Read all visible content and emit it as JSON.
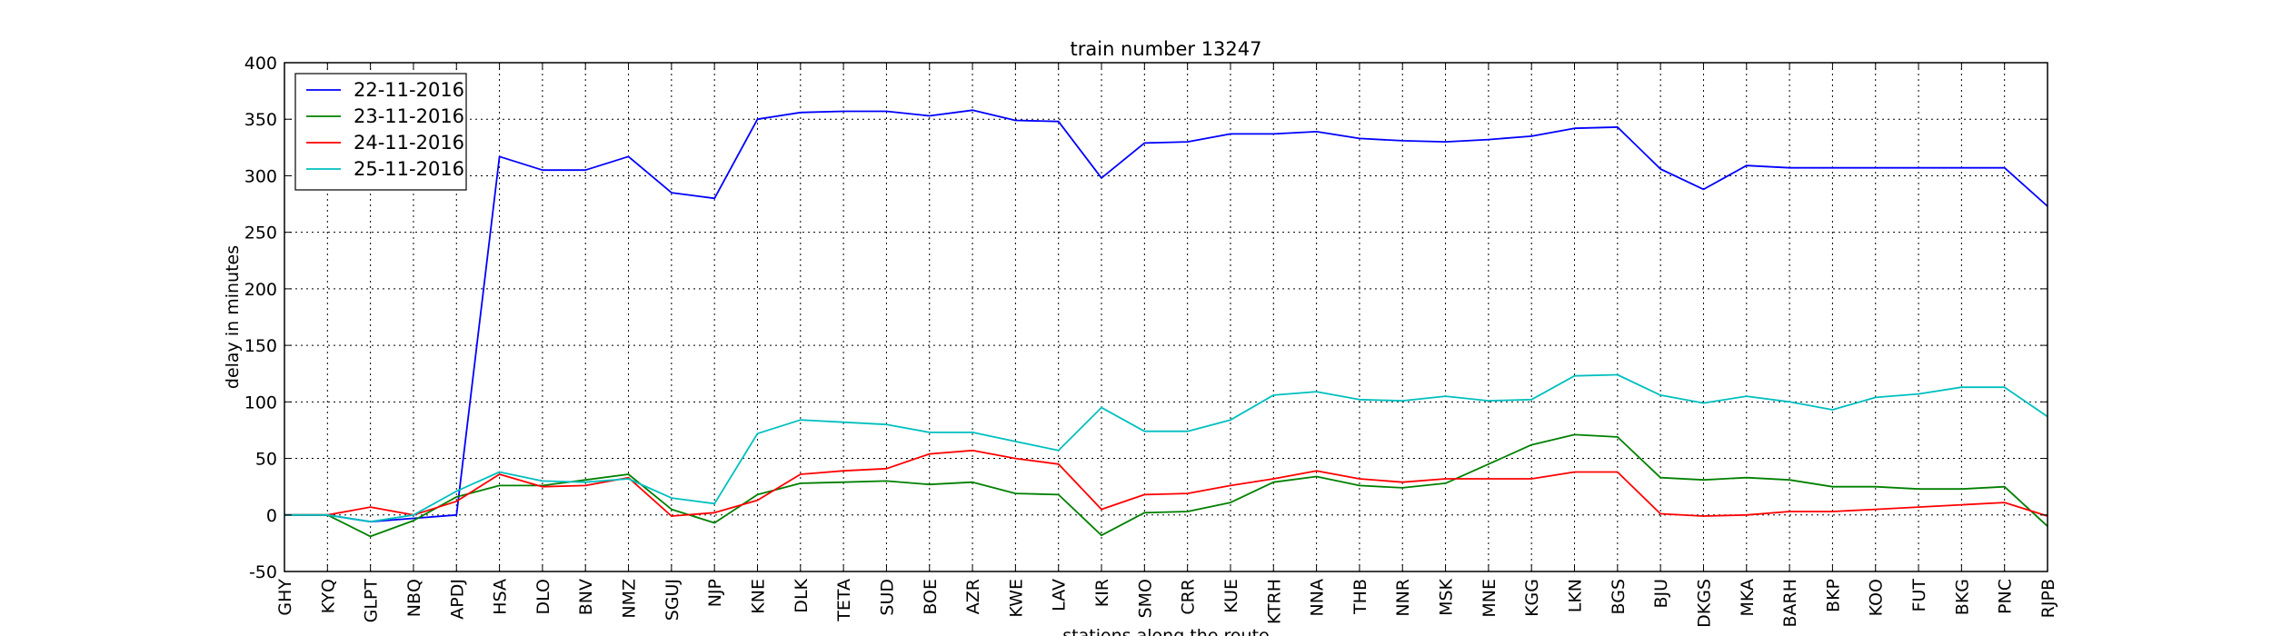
{
  "chart_data": {
    "type": "line",
    "title": "train number 13247",
    "xlabel": "stations along the route",
    "ylabel": "delay in minutes",
    "ylim": [
      -50,
      400
    ],
    "yticks": [
      -50,
      0,
      50,
      100,
      150,
      200,
      250,
      300,
      350,
      400
    ],
    "grid": true,
    "legend_position": "top-left",
    "categories": [
      "GHY",
      "KYQ",
      "GLPT",
      "NBQ",
      "APDJ",
      "HSA",
      "DLO",
      "BNV",
      "NMZ",
      "SGUJ",
      "NJP",
      "KNE",
      "DLK",
      "TETA",
      "SUD",
      "BOE",
      "AZR",
      "KWE",
      "LAV",
      "KIR",
      "SMO",
      "CRR",
      "KUE",
      "KTRH",
      "NNA",
      "THB",
      "NNR",
      "MSK",
      "MNE",
      "KGG",
      "LKN",
      "BGS",
      "BJU",
      "DKGS",
      "MKA",
      "BARH",
      "BKP",
      "KOO",
      "FUT",
      "BKG",
      "PNC",
      "RJPB"
    ],
    "series": [
      {
        "name": "22-11-2016",
        "color": "#0000ff",
        "values": [
          0,
          0,
          -6,
          -3,
          0,
          317,
          305,
          305,
          317,
          285,
          280,
          350,
          356,
          357,
          357,
          353,
          358,
          349,
          348,
          298,
          329,
          330,
          337,
          337,
          339,
          333,
          331,
          330,
          332,
          335,
          342,
          343,
          306,
          288,
          309,
          307,
          307,
          307,
          307,
          307,
          307,
          273
        ]
      },
      {
        "name": "23-11-2016",
        "color": "#008000",
        "values": [
          0,
          0,
          -19,
          -5,
          16,
          26,
          26,
          31,
          36,
          5,
          -7,
          18,
          28,
          29,
          30,
          27,
          29,
          19,
          18,
          -18,
          2,
          3,
          11,
          29,
          34,
          26,
          24,
          28,
          45,
          62,
          71,
          69,
          33,
          31,
          33,
          31,
          25,
          25,
          23,
          23,
          25,
          -10
        ]
      },
      {
        "name": "24-11-2016",
        "color": "#ff0000",
        "values": [
          0,
          0,
          7,
          0,
          12,
          36,
          25,
          26,
          33,
          -1,
          2,
          13,
          36,
          39,
          41,
          54,
          57,
          50,
          45,
          5,
          18,
          19,
          26,
          32,
          39,
          32,
          29,
          32,
          32,
          32,
          38,
          38,
          1,
          -1,
          0,
          3,
          3,
          5,
          7,
          9,
          11,
          -1
        ]
      },
      {
        "name": "25-11-2016",
        "color": "#00bfbf",
        "values": [
          0,
          0,
          -6,
          0,
          21,
          38,
          30,
          29,
          32,
          15,
          10,
          72,
          84,
          82,
          80,
          73,
          73,
          65,
          57,
          95,
          74,
          74,
          84,
          106,
          109,
          102,
          101,
          105,
          101,
          102,
          123,
          124,
          106,
          99,
          105,
          100,
          93,
          104,
          107,
          113,
          113,
          87
        ]
      }
    ]
  }
}
